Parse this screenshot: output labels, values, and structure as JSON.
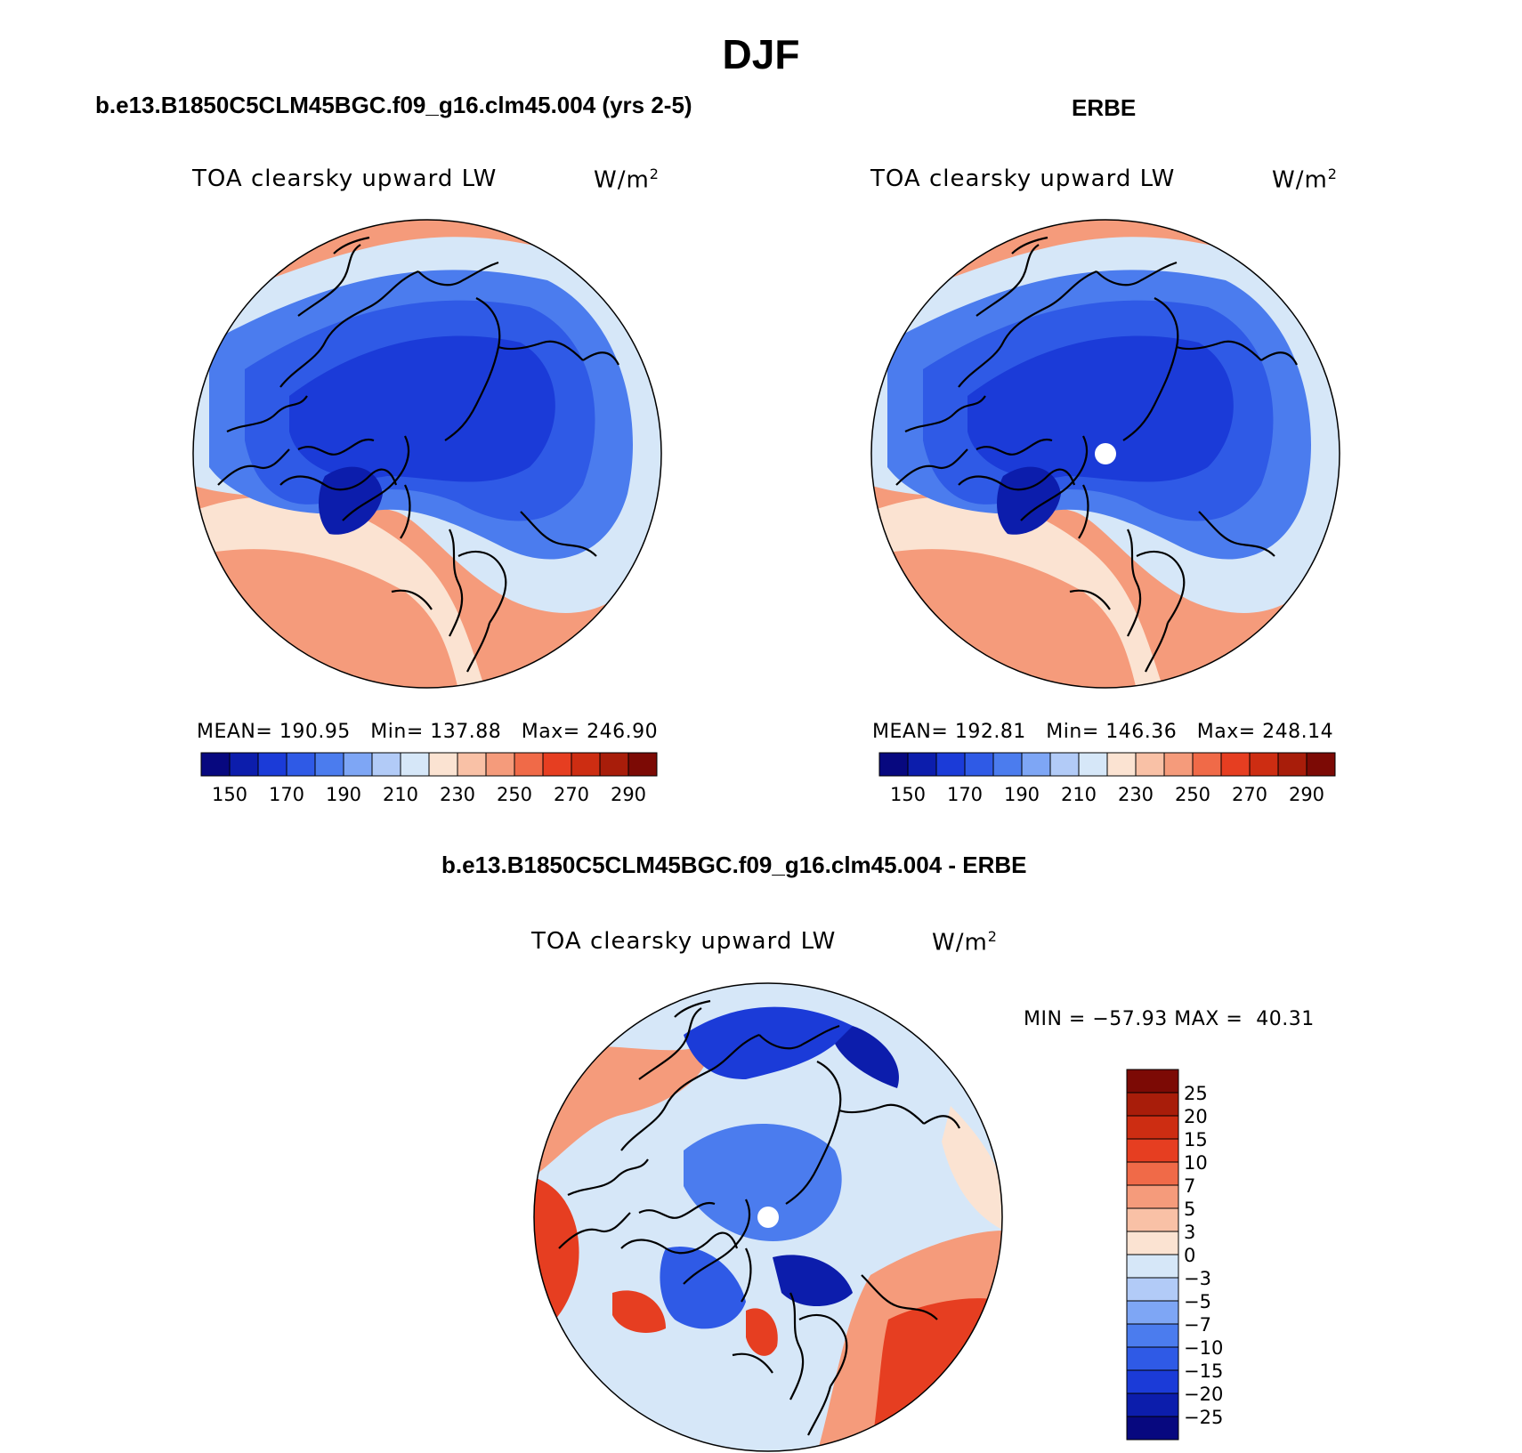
{
  "title": "DJF",
  "panels": [
    {
      "id": "model",
      "title": "b.e13.B1850C5CLM45BGC.f09_g16.clm45.004 (yrs 2-5)",
      "variable": "TOA clearsky upward LW",
      "units": "W/m",
      "units_exponent": "2",
      "stats": {
        "mean_label": "MEAN=",
        "mean": "190.95",
        "min_label": "Min=",
        "min": "137.88",
        "max_label": "Max=",
        "max": "246.90"
      }
    },
    {
      "id": "obs",
      "title": "ERBE",
      "variable": "TOA clearsky upward LW",
      "units": "W/m",
      "units_exponent": "2",
      "stats": {
        "mean_label": "MEAN=",
        "mean": "192.81",
        "min_label": "Min=",
        "min": "146.36",
        "max_label": "Max=",
        "max": "248.14"
      }
    },
    {
      "id": "diff",
      "title": "b.e13.B1850C5CLM45BGC.f09_g16.clm45.004 - ERBE",
      "variable": "TOA clearsky upward LW",
      "units": "W/m",
      "units_exponent": "2",
      "stats": {
        "text": "MIN = −57.93 MAX =  40.31"
      }
    }
  ],
  "colorbar_abs": {
    "colors": [
      "#07087f",
      "#0c1dac",
      "#1b3bd8",
      "#2f5ae6",
      "#4b7cee",
      "#7ea6f5",
      "#b2cbf7",
      "#d6e7f8",
      "#fbe3d2",
      "#f9c1a6",
      "#f59b7b",
      "#f06a48",
      "#e63e21",
      "#cd2d12",
      "#a81d0a",
      "#7c0a05"
    ],
    "tick_labels": [
      "150",
      "170",
      "190",
      "210",
      "230",
      "250",
      "270",
      "290"
    ]
  },
  "colorbar_diff": {
    "colors": [
      "#7c0a05",
      "#a81d0a",
      "#cd2d12",
      "#e63e21",
      "#f06a48",
      "#f59b7b",
      "#f9c1a6",
      "#fbe3d2",
      "#d6e7f8",
      "#b2cbf7",
      "#7ea6f5",
      "#4b7cee",
      "#2f5ae6",
      "#1b3bd8",
      "#0c1dac",
      "#07087f"
    ],
    "tick_labels": [
      "25",
      "20",
      "15",
      "10",
      "7",
      "5",
      "3",
      "0",
      "−3",
      "−5",
      "−7",
      "−10",
      "−15",
      "−20",
      "−25"
    ]
  },
  "map_colors": {
    "ocean_warm": "#f59b7b",
    "light_warm": "#fbe3d2",
    "light_cool": "#d6e7f8",
    "mid_blue": "#4b7cee",
    "blue": "#2f5ae6",
    "deep_blue": "#1b3bd8",
    "darkest": "#0c1dac",
    "red": "#e63e21",
    "coast": "#000000"
  }
}
